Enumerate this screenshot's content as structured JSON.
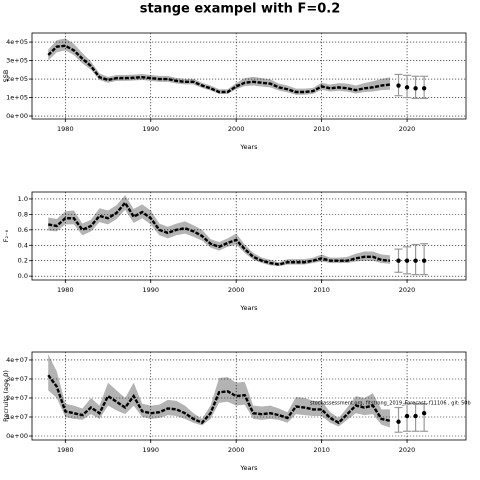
{
  "title": "stange exampel with F=0.2",
  "chart_data": [
    {
      "type": "line",
      "ylabel": "SSB",
      "xlabel": "Years",
      "grid": true,
      "line_color": "#000000",
      "band_color": "#b3b3b3",
      "forecast_color": "#999999",
      "xlim": [
        1976.1,
        2026.9
      ],
      "xticks": [
        1980,
        1990,
        2000,
        2010,
        2020
      ],
      "ylim": [
        -16000,
        449000
      ],
      "yticks": [
        {
          "value": 0,
          "label": "0e+00"
        },
        {
          "value": 100000,
          "label": "1e+05"
        },
        {
          "value": 200000,
          "label": "2e+05"
        },
        {
          "value": 300000,
          "label": "3e+05"
        },
        {
          "value": 400000,
          "label": "4e+05"
        }
      ],
      "x": [
        1978,
        1979,
        1980,
        1981,
        1982,
        1983,
        1984,
        1985,
        1986,
        1987,
        1988,
        1989,
        1990,
        1991,
        1992,
        1993,
        1994,
        1995,
        1996,
        1997,
        1998,
        1999,
        2000,
        2001,
        2002,
        2003,
        2004,
        2005,
        2006,
        2007,
        2008,
        2009,
        2010,
        2011,
        2012,
        2013,
        2014,
        2015,
        2016,
        2017,
        2018
      ],
      "values": [
        330000,
        375000,
        380000,
        355000,
        310000,
        270000,
        210000,
        195000,
        205000,
        205000,
        207000,
        210000,
        205000,
        200000,
        200000,
        190000,
        185000,
        185000,
        165000,
        150000,
        130000,
        130000,
        160000,
        180000,
        185000,
        180000,
        175000,
        155000,
        145000,
        130000,
        130000,
        135000,
        160000,
        150000,
        155000,
        150000,
        140000,
        150000,
        155000,
        165000,
        170000
      ],
      "lower": [
        300000,
        345000,
        355000,
        330000,
        285000,
        250000,
        195000,
        180000,
        190000,
        190000,
        192000,
        195000,
        190000,
        185000,
        185000,
        176000,
        171000,
        171000,
        152000,
        138000,
        120000,
        120000,
        145000,
        162000,
        165000,
        160000,
        155000,
        138000,
        128000,
        115000,
        115000,
        120000,
        142000,
        133000,
        137000,
        132000,
        122000,
        130000,
        133000,
        140000,
        142000
      ],
      "upper": [
        360000,
        410000,
        420000,
        390000,
        340000,
        295000,
        230000,
        212000,
        222000,
        222000,
        224000,
        227000,
        222000,
        217000,
        217000,
        206000,
        201000,
        201000,
        180000,
        165000,
        145000,
        145000,
        178000,
        205000,
        212000,
        205000,
        198000,
        175000,
        165000,
        148000,
        148000,
        152000,
        180000,
        170000,
        178000,
        175000,
        165000,
        178000,
        188000,
        200000,
        210000
      ],
      "forecast": {
        "x": [
          2019,
          2020,
          2021,
          2022
        ],
        "values": [
          165000,
          155000,
          150000,
          150000
        ],
        "lower": [
          110000,
          100000,
          95000,
          95000
        ],
        "upper": [
          225000,
          220000,
          215000,
          215000
        ]
      }
    },
    {
      "type": "line",
      "ylabel": "F₂₋₆",
      "xlabel": "Years",
      "grid": true,
      "line_color": "#000000",
      "band_color": "#b3b3b3",
      "forecast_color": "#999999",
      "xlim": [
        1976.1,
        2026.9
      ],
      "xticks": [
        1980,
        1990,
        2000,
        2010,
        2020
      ],
      "ylim": [
        -0.05,
        1.09
      ],
      "yticks": [
        {
          "value": 0,
          "label": "0.0"
        },
        {
          "value": 0.2,
          "label": "0.2"
        },
        {
          "value": 0.4,
          "label": "0.4"
        },
        {
          "value": 0.6,
          "label": "0.6"
        },
        {
          "value": 0.8,
          "label": "0.8"
        },
        {
          "value": 1,
          "label": "1.0"
        }
      ],
      "x": [
        1978,
        1979,
        1980,
        1981,
        1982,
        1983,
        1984,
        1985,
        1986,
        1987,
        1988,
        1989,
        1990,
        1991,
        1992,
        1993,
        1994,
        1995,
        1996,
        1997,
        1998,
        1999,
        2000,
        2001,
        2002,
        2003,
        2004,
        2005,
        2006,
        2007,
        2008,
        2009,
        2010,
        2011,
        2012,
        2013,
        2014,
        2015,
        2016,
        2017,
        2018
      ],
      "values": [
        0.67,
        0.65,
        0.75,
        0.75,
        0.6,
        0.65,
        0.78,
        0.75,
        0.82,
        0.95,
        0.77,
        0.83,
        0.75,
        0.6,
        0.56,
        0.6,
        0.62,
        0.58,
        0.52,
        0.42,
        0.38,
        0.43,
        0.47,
        0.35,
        0.25,
        0.2,
        0.17,
        0.15,
        0.18,
        0.18,
        0.18,
        0.2,
        0.23,
        0.2,
        0.2,
        0.2,
        0.23,
        0.25,
        0.25,
        0.21,
        0.2
      ],
      "lower": [
        0.59,
        0.58,
        0.67,
        0.67,
        0.53,
        0.58,
        0.7,
        0.67,
        0.74,
        0.86,
        0.69,
        0.75,
        0.67,
        0.53,
        0.49,
        0.53,
        0.55,
        0.51,
        0.46,
        0.37,
        0.33,
        0.38,
        0.41,
        0.3,
        0.21,
        0.17,
        0.14,
        0.13,
        0.15,
        0.15,
        0.15,
        0.17,
        0.19,
        0.17,
        0.17,
        0.17,
        0.19,
        0.2,
        0.2,
        0.17,
        0.16
      ],
      "upper": [
        0.76,
        0.74,
        0.84,
        0.85,
        0.68,
        0.73,
        0.88,
        0.85,
        0.92,
        1.05,
        0.87,
        0.93,
        0.85,
        0.68,
        0.64,
        0.68,
        0.71,
        0.66,
        0.6,
        0.48,
        0.44,
        0.49,
        0.55,
        0.41,
        0.3,
        0.24,
        0.21,
        0.18,
        0.22,
        0.22,
        0.22,
        0.24,
        0.28,
        0.24,
        0.24,
        0.25,
        0.29,
        0.32,
        0.32,
        0.28,
        0.27
      ],
      "forecast": {
        "x": [
          2019,
          2020,
          2021,
          2022
        ],
        "values": [
          0.2,
          0.2,
          0.2,
          0.2
        ],
        "lower": [
          0.05,
          0.03,
          0.02,
          0.02
        ],
        "upper": [
          0.35,
          0.38,
          0.41,
          0.42
        ]
      }
    },
    {
      "type": "line",
      "ylabel": "Recruits (age 0)",
      "xlabel": "Years",
      "grid": true,
      "line_color": "#000000",
      "band_color": "#b3b3b3",
      "forecast_color": "#999999",
      "annotation": "stockassessment.org, fitstrong_2019_Forecast, f11106 , git: 50b",
      "xlim": [
        1976.1,
        2026.9
      ],
      "xticks": [
        1980,
        1990,
        2000,
        2010,
        2020
      ],
      "ylim": [
        -2100000,
        44200000
      ],
      "yticks": [
        {
          "value": 0,
          "label": "0e+00"
        },
        {
          "value": 10000000,
          "label": "1e+07"
        },
        {
          "value": 20000000,
          "label": "2e+07"
        },
        {
          "value": 30000000,
          "label": "3e+07"
        },
        {
          "value": 40000000,
          "label": "4e+07"
        }
      ],
      "x": [
        1978,
        1979,
        1980,
        1981,
        1982,
        1983,
        1984,
        1985,
        1986,
        1987,
        1988,
        1989,
        1990,
        1991,
        1992,
        1993,
        1994,
        1995,
        1996,
        1997,
        1998,
        1999,
        2000,
        2001,
        2002,
        2003,
        2004,
        2005,
        2006,
        2007,
        2008,
        2009,
        2010,
        2011,
        2012,
        2013,
        2014,
        2015,
        2016,
        2017,
        2018
      ],
      "values": [
        32000000,
        26000000,
        13000000,
        12000000,
        11000000,
        15000000,
        12000000,
        21000000,
        18000000,
        15000000,
        21000000,
        13000000,
        12000000,
        12500000,
        14500000,
        14000000,
        12000000,
        9000000,
        7000000,
        12000000,
        23000000,
        23500000,
        21000000,
        21500000,
        12000000,
        11500000,
        12000000,
        11000000,
        9500000,
        15500000,
        15000000,
        14000000,
        14000000,
        9500000,
        7000000,
        11500000,
        16000000,
        15000000,
        16000000,
        9000000,
        8000000
      ],
      "lower": [
        24000000,
        20000000,
        10000000,
        9000000,
        8500000,
        11500000,
        9000000,
        16000000,
        13500000,
        11500000,
        16000000,
        10000000,
        9000000,
        9500000,
        11000000,
        10500000,
        9000000,
        7000000,
        5500000,
        9000000,
        17500000,
        18000000,
        16000000,
        16500000,
        9000000,
        8500000,
        9000000,
        8500000,
        7000000,
        11500000,
        11000000,
        10500000,
        10500000,
        7000000,
        5000000,
        8500000,
        12000000,
        11000000,
        11500000,
        6000000,
        4500000
      ],
      "upper": [
        43000000,
        34000000,
        17000000,
        16000000,
        14500000,
        20000000,
        16000000,
        28000000,
        24000000,
        20000000,
        28000000,
        17000000,
        16000000,
        16500000,
        19000000,
        18500000,
        16000000,
        12000000,
        9000000,
        16000000,
        30500000,
        31000000,
        28000000,
        28500000,
        16000000,
        15500000,
        16000000,
        14500000,
        12500000,
        20500000,
        20000000,
        18500000,
        18500000,
        12500000,
        9500000,
        15000000,
        21000000,
        20000000,
        22500000,
        14000000,
        14000000
      ],
      "forecast": {
        "x": [
          2019,
          2020,
          2021,
          2022
        ],
        "values": [
          7500000,
          10500000,
          10500000,
          12000000
        ],
        "lower": [
          2000000,
          2500000,
          2500000,
          2500000
        ],
        "upper": [
          15000000,
          17000000,
          17000000,
          17000000
        ]
      }
    }
  ]
}
